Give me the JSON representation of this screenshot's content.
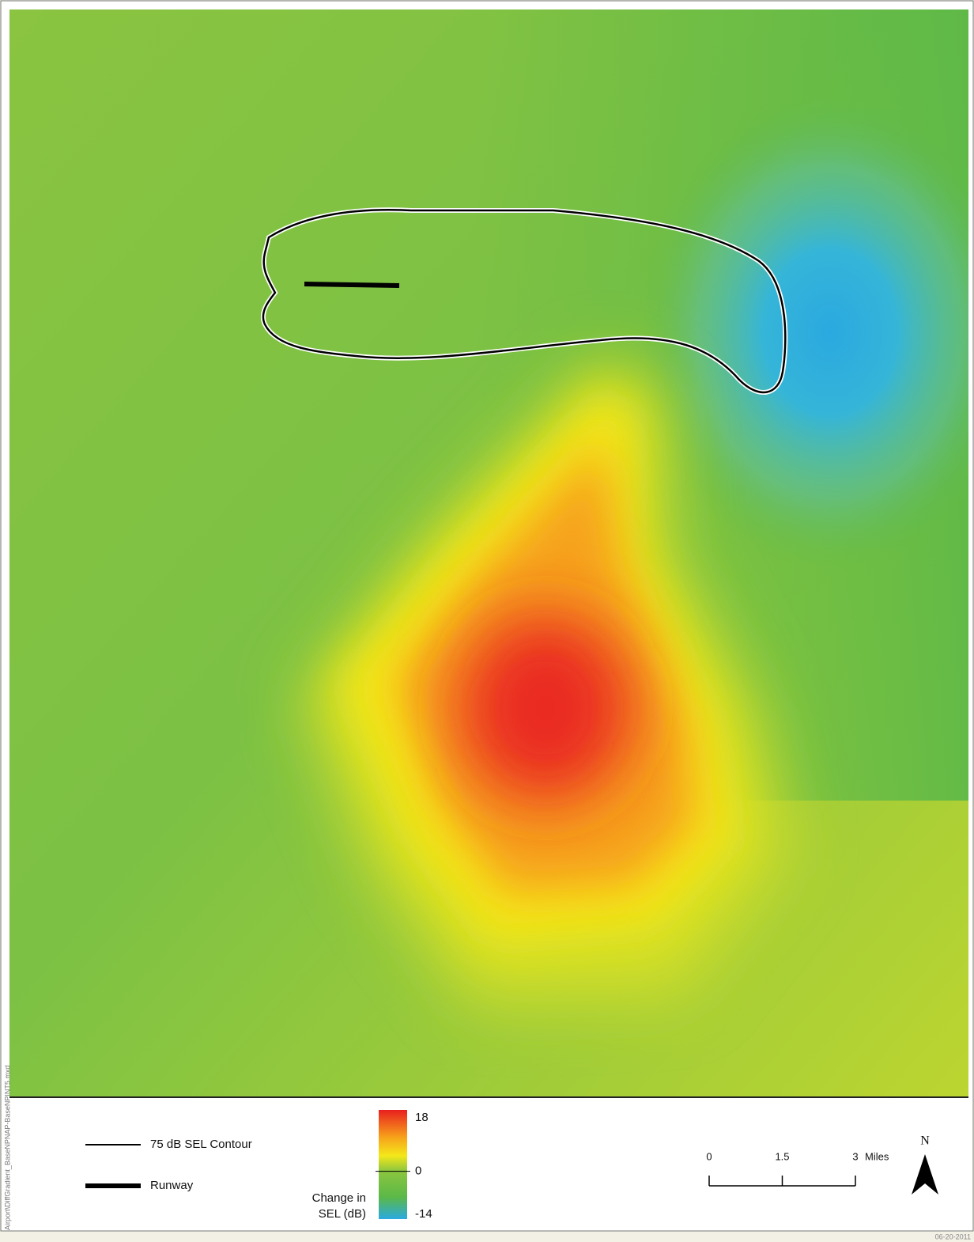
{
  "map": {
    "side_label": "Airport\\DiffGradient_BaseNPNAP-BaseNPINT5.mxd",
    "date": "06-20-2011",
    "legend": {
      "contour": "75 dB SEL Contour",
      "runway": "Runway",
      "colorbar": {
        "title_lines": [
          "Change in",
          "SEL (dB)"
        ],
        "range": [
          -14,
          18
        ],
        "ticks": [
          18,
          0,
          -14
        ]
      }
    },
    "scale_bar": {
      "ticks": [
        0,
        1.5,
        3
      ],
      "unit": "Miles"
    },
    "north": "N"
  }
}
